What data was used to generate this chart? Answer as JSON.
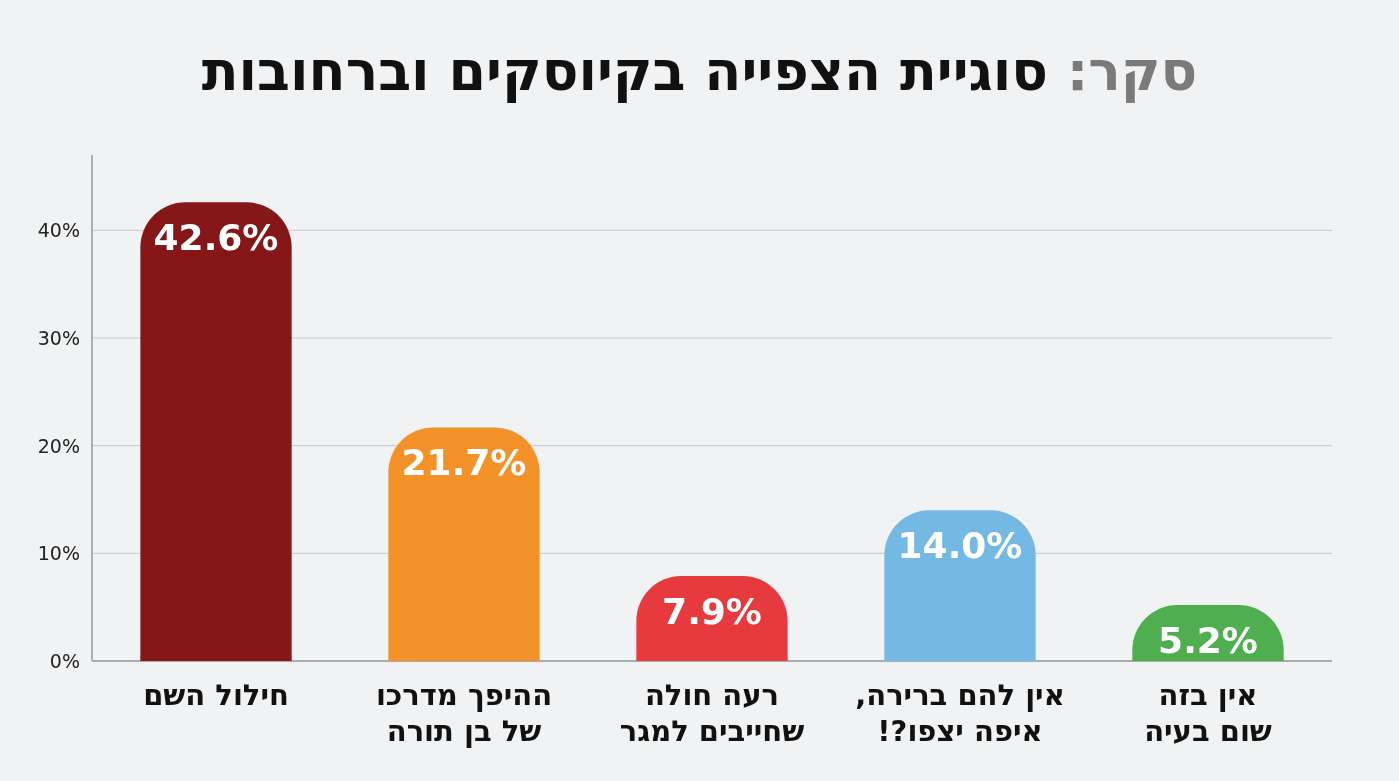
{
  "chart_data": {
    "type": "bar",
    "title": "סקר: סוגיית הצפייה בקיוסקים וברחובות",
    "categories": [
      "חילול השם",
      "ההיפך מדרכו\nשל בן תורה",
      "רעה חולה\nשחייבים למגר",
      "אין להם ברירה,\nאיפה יצפו?!",
      "אין בזה\nשום בעיה"
    ],
    "values": [
      42.6,
      21.7,
      7.9,
      14.0,
      5.2
    ],
    "value_labels": [
      "42.6%",
      "21.7%",
      "7.9%",
      "14.0%",
      "5.2%"
    ],
    "colors": [
      "#861719",
      "#f4922a",
      "#e63a3f",
      "#74b9e4",
      "#4fae4f"
    ],
    "ylim": [
      0,
      47
    ],
    "yticks": [
      {
        "value": 0,
        "label": "0%"
      },
      {
        "value": 10,
        "label": "10%"
      },
      {
        "value": 20,
        "label": "20%"
      },
      {
        "value": 30,
        "label": "30%"
      },
      {
        "value": 40,
        "label": "40%"
      }
    ],
    "grid": "y"
  }
}
